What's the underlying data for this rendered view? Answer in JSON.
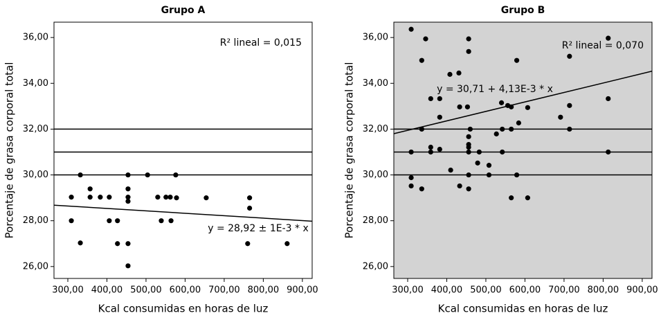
{
  "chart_data": [
    {
      "type": "scatter",
      "title": "Grupo A",
      "x_label": "Kcal consumidas en horas de luz",
      "y_label": "Porcentaje de grasa corporal total",
      "xlim": [
        264.6,
        925
      ],
      "ylim": [
        25.48,
        36.67
      ],
      "xticks": [
        {
          "value": 300,
          "label": "300,00"
        },
        {
          "value": 400,
          "label": "400,00"
        },
        {
          "value": 500,
          "label": "500,00"
        },
        {
          "value": 600,
          "label": "600,00"
        },
        {
          "value": 700,
          "label": "700,00"
        },
        {
          "value": 800,
          "label": "800,00"
        },
        {
          "value": 900,
          "label": "900,00"
        }
      ],
      "yticks": [
        {
          "value": 26,
          "label": "26,00"
        },
        {
          "value": 28,
          "label": "28,00"
        },
        {
          "value": 30,
          "label": "30,00"
        },
        {
          "value": 32,
          "label": "32,00"
        },
        {
          "value": 34,
          "label": "34,00"
        },
        {
          "value": 36,
          "label": "36,00"
        }
      ],
      "plot_background": "#ffffff",
      "color": "#000000",
      "reference_lines": [
        32,
        31,
        30
      ],
      "fit": {
        "x": [
          264.6,
          925
        ],
        "y": [
          28.68,
          27.98
        ]
      },
      "r2_label": "R² lineal = 0,015",
      "equation": "y = 28,92 ± 1E-3 * x",
      "x": [
        309,
        309,
        332,
        332,
        357,
        357,
        383,
        406,
        406,
        427,
        427,
        454,
        454,
        454,
        454,
        454,
        454,
        504,
        530,
        539,
        551,
        562,
        564,
        576,
        578,
        654,
        765,
        765,
        760,
        861
      ],
      "y": [
        29.03,
        28.0,
        30.0,
        27.03,
        29.39,
        29.03,
        29.03,
        29.03,
        28.0,
        28.0,
        27.0,
        30.0,
        29.39,
        29.03,
        28.85,
        27.0,
        26.03,
        30.0,
        29.03,
        28.0,
        29.03,
        29.03,
        28.0,
        30.0,
        29.0,
        29.0,
        29.0,
        28.55,
        27.0,
        27.0
      ]
    },
    {
      "type": "scatter",
      "title": "Grupo B",
      "x_label": "Kcal consumidas en horas de luz",
      "y_label": "Porcentaje de grasa corporal total",
      "xlim": [
        264.6,
        925
      ],
      "ylim": [
        25.48,
        36.67
      ],
      "xticks": [
        {
          "value": 300,
          "label": "300,00"
        },
        {
          "value": 400,
          "label": "400,00"
        },
        {
          "value": 500,
          "label": "500,00"
        },
        {
          "value": 600,
          "label": "600,00"
        },
        {
          "value": 700,
          "label": "700,00"
        },
        {
          "value": 800,
          "label": "800,00"
        },
        {
          "value": 900,
          "label": "900,00"
        }
      ],
      "yticks": [
        {
          "value": 26,
          "label": "26,00"
        },
        {
          "value": 28,
          "label": "28,00"
        },
        {
          "value": 30,
          "label": "30,00"
        },
        {
          "value": 32,
          "label": "32,00"
        },
        {
          "value": 34,
          "label": "34,00"
        },
        {
          "value": 36,
          "label": "36,00"
        }
      ],
      "plot_background": "#d3d3d3",
      "color": "#000000",
      "reference_lines": [
        32,
        31,
        30
      ],
      "fit": {
        "x": [
          264.6,
          925
        ],
        "y": [
          31.8,
          34.53
        ]
      },
      "r2_label": "R² lineal = 0,070",
      "equation": "y = 30,71 + 4,13E-3 * x",
      "x": [
        309,
        309,
        309,
        309,
        336,
        336,
        336,
        346,
        359,
        359,
        359,
        382,
        382,
        382,
        408,
        410,
        431,
        433,
        433,
        456,
        456,
        453,
        460,
        456,
        456,
        456,
        456,
        456,
        456,
        479,
        483,
        508,
        508,
        527,
        540,
        542,
        542,
        556,
        565,
        565,
        565,
        579,
        579,
        584,
        607,
        607,
        691,
        714,
        714,
        714,
        813,
        813,
        813
      ],
      "y": [
        36.36,
        31.0,
        29.88,
        29.52,
        35.0,
        32.0,
        29.39,
        35.94,
        33.33,
        31.21,
        31.0,
        33.33,
        32.52,
        31.12,
        34.39,
        30.21,
        34.45,
        32.97,
        29.52,
        35.94,
        35.39,
        32.97,
        32.0,
        31.67,
        31.33,
        31.21,
        31.0,
        30.0,
        29.39,
        30.52,
        31.0,
        30.42,
        30.0,
        31.79,
        33.15,
        32.0,
        31.0,
        33.03,
        32.97,
        32.0,
        29.0,
        35.0,
        30.0,
        32.27,
        32.94,
        29.0,
        32.52,
        35.18,
        33.03,
        32.0,
        35.97,
        33.33,
        31.0
      ]
    }
  ]
}
